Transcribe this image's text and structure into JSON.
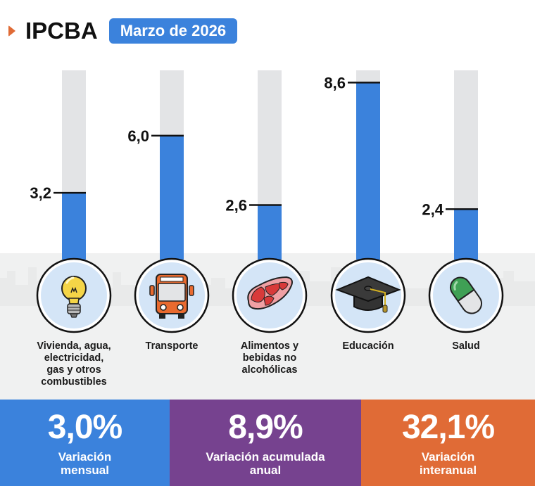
{
  "header": {
    "title": "IPCBA",
    "period": "Marzo de 2026"
  },
  "colors": {
    "bar_fill": "#3b82dc",
    "bar_track": "#e3e4e6",
    "accent_orange": "#e06b36",
    "icon_circle": "#d4e5f7",
    "stat_blue": "#3b82dc",
    "stat_purple": "#76428f",
    "stat_orange": "#e06b36"
  },
  "chart_data": {
    "type": "bar",
    "title": "IPCBA Marzo de 2026",
    "categories": [
      "Vivienda, agua, electricidad, gas y otros combustibles",
      "Transporte",
      "Alimentos y bebidas no alcohólicas",
      "Educación",
      "Salud"
    ],
    "values": [
      3.2,
      6.0,
      2.6,
      8.6,
      2.4
    ],
    "value_labels": [
      "3,2",
      "6,0",
      "2,6",
      "8,6",
      "2,4"
    ],
    "icons": [
      "lightbulb-icon",
      "bus-icon",
      "meat-icon",
      "graduation-cap-icon",
      "pill-icon"
    ],
    "ylim": [
      0,
      9.2
    ],
    "xlabel": "",
    "ylabel": "",
    "grid": false,
    "legend": "none"
  },
  "labels": [
    [
      "Vivienda, agua,",
      "electricidad,",
      "gas y otros",
      "combustibles"
    ],
    [
      "Transporte"
    ],
    [
      "Alimentos y",
      "bebidas no",
      "alcohólicas"
    ],
    [
      "Educación"
    ],
    [
      "Salud"
    ]
  ],
  "stats": [
    {
      "value": "3,0%",
      "label_line1": "Variación",
      "label_line2": "mensual"
    },
    {
      "value": "8,9%",
      "label_line1": "Variación acumulada",
      "label_line2": "anual"
    },
    {
      "value": "32,1%",
      "label_line1": "Variación",
      "label_line2": "interanual"
    }
  ]
}
